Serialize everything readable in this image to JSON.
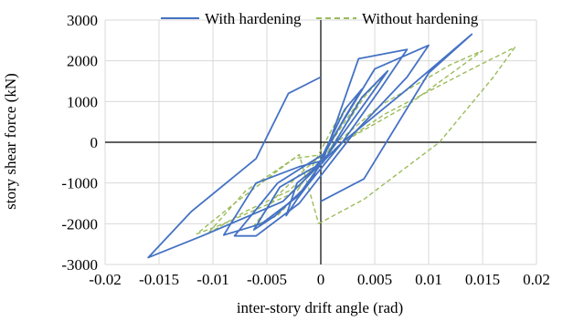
{
  "chart_data": {
    "type": "line",
    "title": "",
    "xlabel": "inter-story drift angle (rad)",
    "ylabel": "story shear force (kN)",
    "xlim": [
      -0.02,
      0.02
    ],
    "ylim": [
      -3000,
      3000
    ],
    "x_ticks": [
      -0.02,
      -0.015,
      -0.01,
      -0.005,
      0,
      0.005,
      0.01,
      0.015,
      0.02
    ],
    "x_tick_labels": [
      "-0.02",
      "-0.015",
      "-0.01",
      "-0.005",
      "0",
      "0.005",
      "0.01",
      "0.015",
      "0.02"
    ],
    "y_ticks": [
      -3000,
      -2000,
      -1000,
      0,
      1000,
      2000,
      3000
    ],
    "y_tick_labels": [
      "-3000",
      "-2000",
      "-1000",
      "0",
      "1000",
      "2000",
      "3000"
    ],
    "grid": true,
    "legend_position": "top",
    "series": [
      {
        "name": "With hardening",
        "color": "#4472C4",
        "style": "solid",
        "loops": [
          {
            "x": [
              0.0001,
              0.0022,
              0.0038,
              0.0022,
              0.0004,
              -0.0008,
              -0.0022,
              -0.0032,
              -0.0022,
              -0.0008,
              0.0001
            ],
            "y": [
              -400,
              600,
              1300,
              800,
              -200,
              -900,
              -1400,
              -1800,
              -1000,
              -700,
              -400
            ]
          },
          {
            "x": [
              0.0002,
              0.0038,
              0.0062,
              0.0042,
              0.0012,
              -0.0018,
              -0.0042,
              -0.0062,
              -0.0038,
              -0.0012,
              0.0002
            ],
            "y": [
              -500,
              1100,
              1750,
              1000,
              -100,
              -1200,
              -1800,
              -2150,
              -1100,
              -700,
              -500
            ]
          },
          {
            "x": [
              0.0002,
              0.0035,
              0.008,
              0.0055,
              0.002,
              -0.002,
              -0.0055,
              -0.009,
              -0.006,
              -0.002,
              0.0002
            ],
            "y": [
              -450,
              2050,
              2280,
              1300,
              0,
              -1300,
              -2000,
              -2280,
              -1000,
              -600,
              -450
            ]
          },
          {
            "x": [
              0.0002,
              0.005,
              0.01,
              0.008,
              0.003,
              -0.002,
              -0.006,
              -0.008,
              -0.004,
              -0.001,
              0.0002
            ],
            "y": [
              -300,
              1800,
              2380,
              1600,
              200,
              -1500,
              -2300,
              -2300,
              -1000,
              -500,
              -300
            ]
          },
          {
            "x": [
              0.0,
              0.004,
              0.01,
              0.014,
              0.008,
              0.002,
              -0.0035,
              -0.011,
              -0.016,
              -0.012,
              -0.006,
              -0.003,
              0.0
            ],
            "y": [
              -1450,
              -900,
              1700,
              2650,
              1300,
              0,
              -1450,
              -2300,
              -2830,
              -1700,
              -400,
              1200,
              1600
            ]
          }
        ]
      },
      {
        "name": "Without hardening",
        "color": "#9BBB59",
        "style": "dashed",
        "loops": [
          {
            "x": [
              0.0002,
              0.0015,
              0.0025,
              0.0012,
              -0.0002,
              -0.0012,
              -0.0022,
              -0.001,
              0.0002
            ],
            "y": [
              -400,
              400,
              900,
              400,
              -300,
              -800,
              -1200,
              -700,
              -400
            ]
          },
          {
            "x": [
              0.0002,
              0.0035,
              0.006,
              0.004,
              0.001,
              -0.0015,
              -0.004,
              -0.0062,
              -0.004,
              -0.0012,
              0.0002
            ],
            "y": [
              -300,
              1000,
              1700,
              1100,
              -100,
              -1100,
              -1800,
              -2050,
              -1300,
              -600,
              -300
            ]
          },
          {
            "x": [
              0.0002,
              0.0055,
              0.012,
              0.015,
              0.008,
              0.002,
              -0.003,
              -0.007,
              -0.0105,
              -0.007,
              -0.0025,
              0.0002
            ],
            "y": [
              -300,
              900,
              1900,
              2250,
              900,
              0,
              -1200,
              -1700,
              -2250,
              -1200,
              -400,
              -300
            ]
          },
          {
            "x": [
              -0.0002,
              0.004,
              0.011,
              0.016,
              0.018,
              0.014,
              0.006,
              0.002,
              -0.003,
              -0.009,
              -0.0115,
              -0.008,
              -0.002,
              -0.0002
            ],
            "y": [
              -2000,
              -1400,
              0,
              1600,
              2330,
              1800,
              700,
              0,
              -1300,
              -2000,
              -2250,
              -1500,
              -300,
              -2000
            ]
          }
        ]
      }
    ]
  }
}
